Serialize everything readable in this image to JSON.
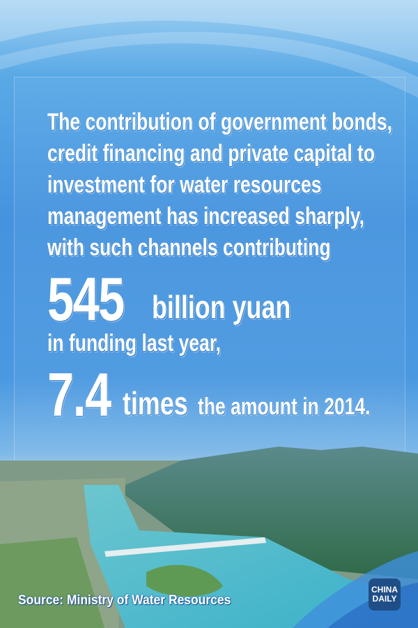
{
  "headline": {
    "lines": [
      "The contribution of government bonds,",
      "credit financing and private capital to",
      "investment for water resources",
      "management has increased sharply,",
      "with such channels contributing"
    ],
    "amount_value": "545",
    "amount_unit": "billion yuan",
    "amount_context": "in funding last year,",
    "multiple_value": "7.4",
    "multiple_unit": "times",
    "multiple_context": "the amount in 2014."
  },
  "footer": {
    "source": "Source: Ministry of Water Resources",
    "logo_line1": "CHINA",
    "logo_line2": "DAILY"
  },
  "colors": {
    "sky": "#4593de",
    "logo_bg": "#1f4e86"
  }
}
